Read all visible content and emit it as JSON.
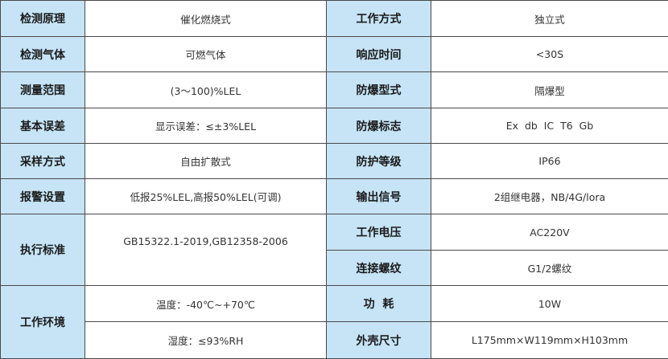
{
  "label_bg_color": "#c6e4f6",
  "rows": [
    {
      "l_label": "检测原理",
      "l_value": "催化燃烧式",
      "r_label": "工作方式",
      "r_value": "独立式"
    },
    {
      "l_label": "检测气体",
      "l_value": "可燃气体",
      "r_label": "响应时间",
      "r_value": "<30S"
    },
    {
      "l_label": "测量范围",
      "l_value": "(3～100)%LEL",
      "r_label": "防爆型式",
      "r_value": "隔爆型"
    },
    {
      "l_label": "基本误差",
      "l_value": "显示误差：≤±3%LEL",
      "r_label": "防爆标志",
      "r_value": "Ex  db  IC  T6  Gb"
    },
    {
      "l_label": "采样方式",
      "l_value": "自由扩散式",
      "r_label": "防护等级",
      "r_value": "IP66"
    },
    {
      "l_label": "报警设置",
      "l_value": "低报25%LEL,高报50%LEL(可调)",
      "r_label": "输出信号",
      "r_value": "2组继电器，NB/4G/lora"
    }
  ],
  "standard": {
    "label": "执行标准",
    "value": "GB15322.1-2019,GB12358-2006"
  },
  "environment": {
    "label": "工作环境",
    "temperature": "温度：-40℃~+70℃",
    "humidity": "湿度：≤93%RH"
  },
  "right_extra": [
    {
      "label": "工作电压",
      "value": "AC220V"
    },
    {
      "label": "连接螺纹",
      "value": "G1/2螺纹"
    },
    {
      "label": "功  耗",
      "value": "10W"
    },
    {
      "label": "外壳尺寸",
      "value": "L175mm×W119mm×H103mm"
    }
  ]
}
